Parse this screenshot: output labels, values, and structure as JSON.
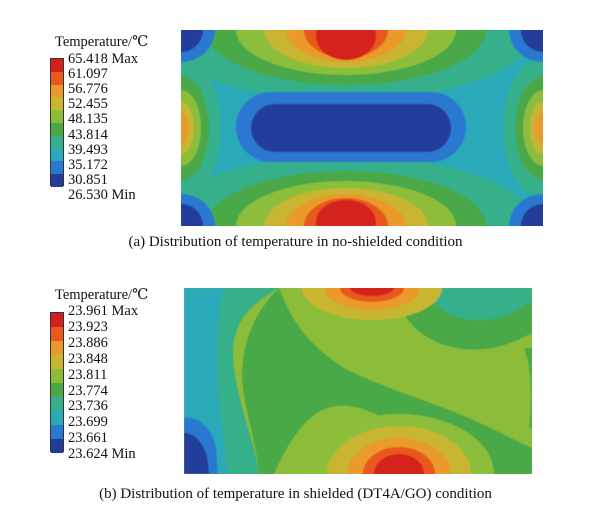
{
  "panel_a": {
    "legend_title": "Temperature/℃",
    "legend_labels": [
      "65.418 Max",
      "61.097",
      "56.776",
      "52.455",
      "48.135",
      "43.814",
      "39.493",
      "35.172",
      "30.851",
      "26.530 Min"
    ],
    "caption": "(a) Distribution of temperature in no-shielded condition"
  },
  "panel_b": {
    "legend_title": "Temperature/℃",
    "legend_labels": [
      "23.961 Max",
      "23.923",
      "23.886",
      "23.848",
      "23.811",
      "23.774",
      "23.736",
      "23.699",
      "23.661",
      "23.624 Min"
    ],
    "caption": "(b) Distribution of temperature in shielded (DT4A/GO) condition"
  },
  "colormap": [
    "#d4201c",
    "#e8591c",
    "#e99a2a",
    "#c8b630",
    "#8cbd3a",
    "#4aa846",
    "#36b08a",
    "#2aa9b9",
    "#2a78d0",
    "#233c9a"
  ]
}
